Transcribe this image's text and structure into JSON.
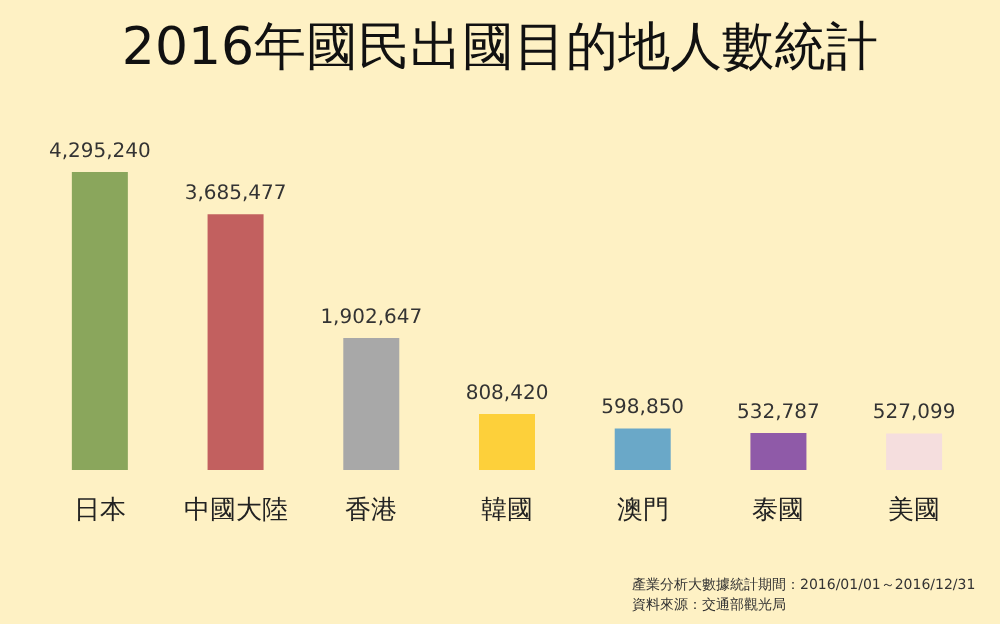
{
  "chart_data": {
    "type": "bar",
    "title": "2016年國民出國目的地人數統計",
    "categories": [
      "日本",
      "中國大陸",
      "香港",
      "韓國",
      "澳門",
      "泰國",
      "美國"
    ],
    "values": [
      4295240,
      3685477,
      1902647,
      808420,
      598850,
      532787,
      527099
    ],
    "value_labels": [
      "4,295,240",
      "3,685,477",
      "1,902,647",
      "808,420",
      "598,850",
      "532,787",
      "527,099"
    ],
    "colors": [
      "#8aa65c",
      "#c2605f",
      "#a8a8a8",
      "#fdd03a",
      "#6aa8c8",
      "#8f5aa8",
      "#f5dede"
    ],
    "annotations": [
      "產業分析大數據統計期間：2016/01/01～2016/12/31",
      "資料來源：交通部觀光局"
    ]
  }
}
